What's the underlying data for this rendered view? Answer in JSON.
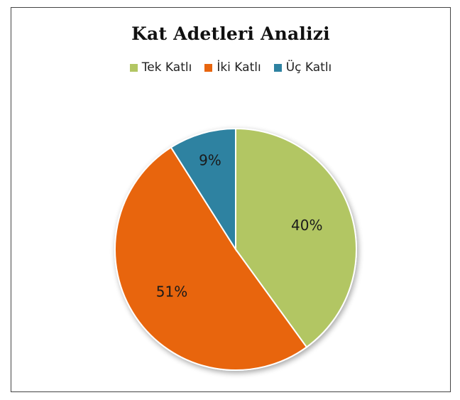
{
  "chart_data": {
    "type": "pie",
    "title": "Kat Adetleri Analizi",
    "categories": [
      "Tek Katlı",
      "İki Katlı",
      "Üç Katlı"
    ],
    "values": [
      40,
      51,
      9
    ],
    "labels": [
      "40%",
      "51%",
      "9%"
    ],
    "colors": [
      "#B2C663",
      "#E8650E",
      "#2E82A1"
    ],
    "legend_position": "top"
  }
}
